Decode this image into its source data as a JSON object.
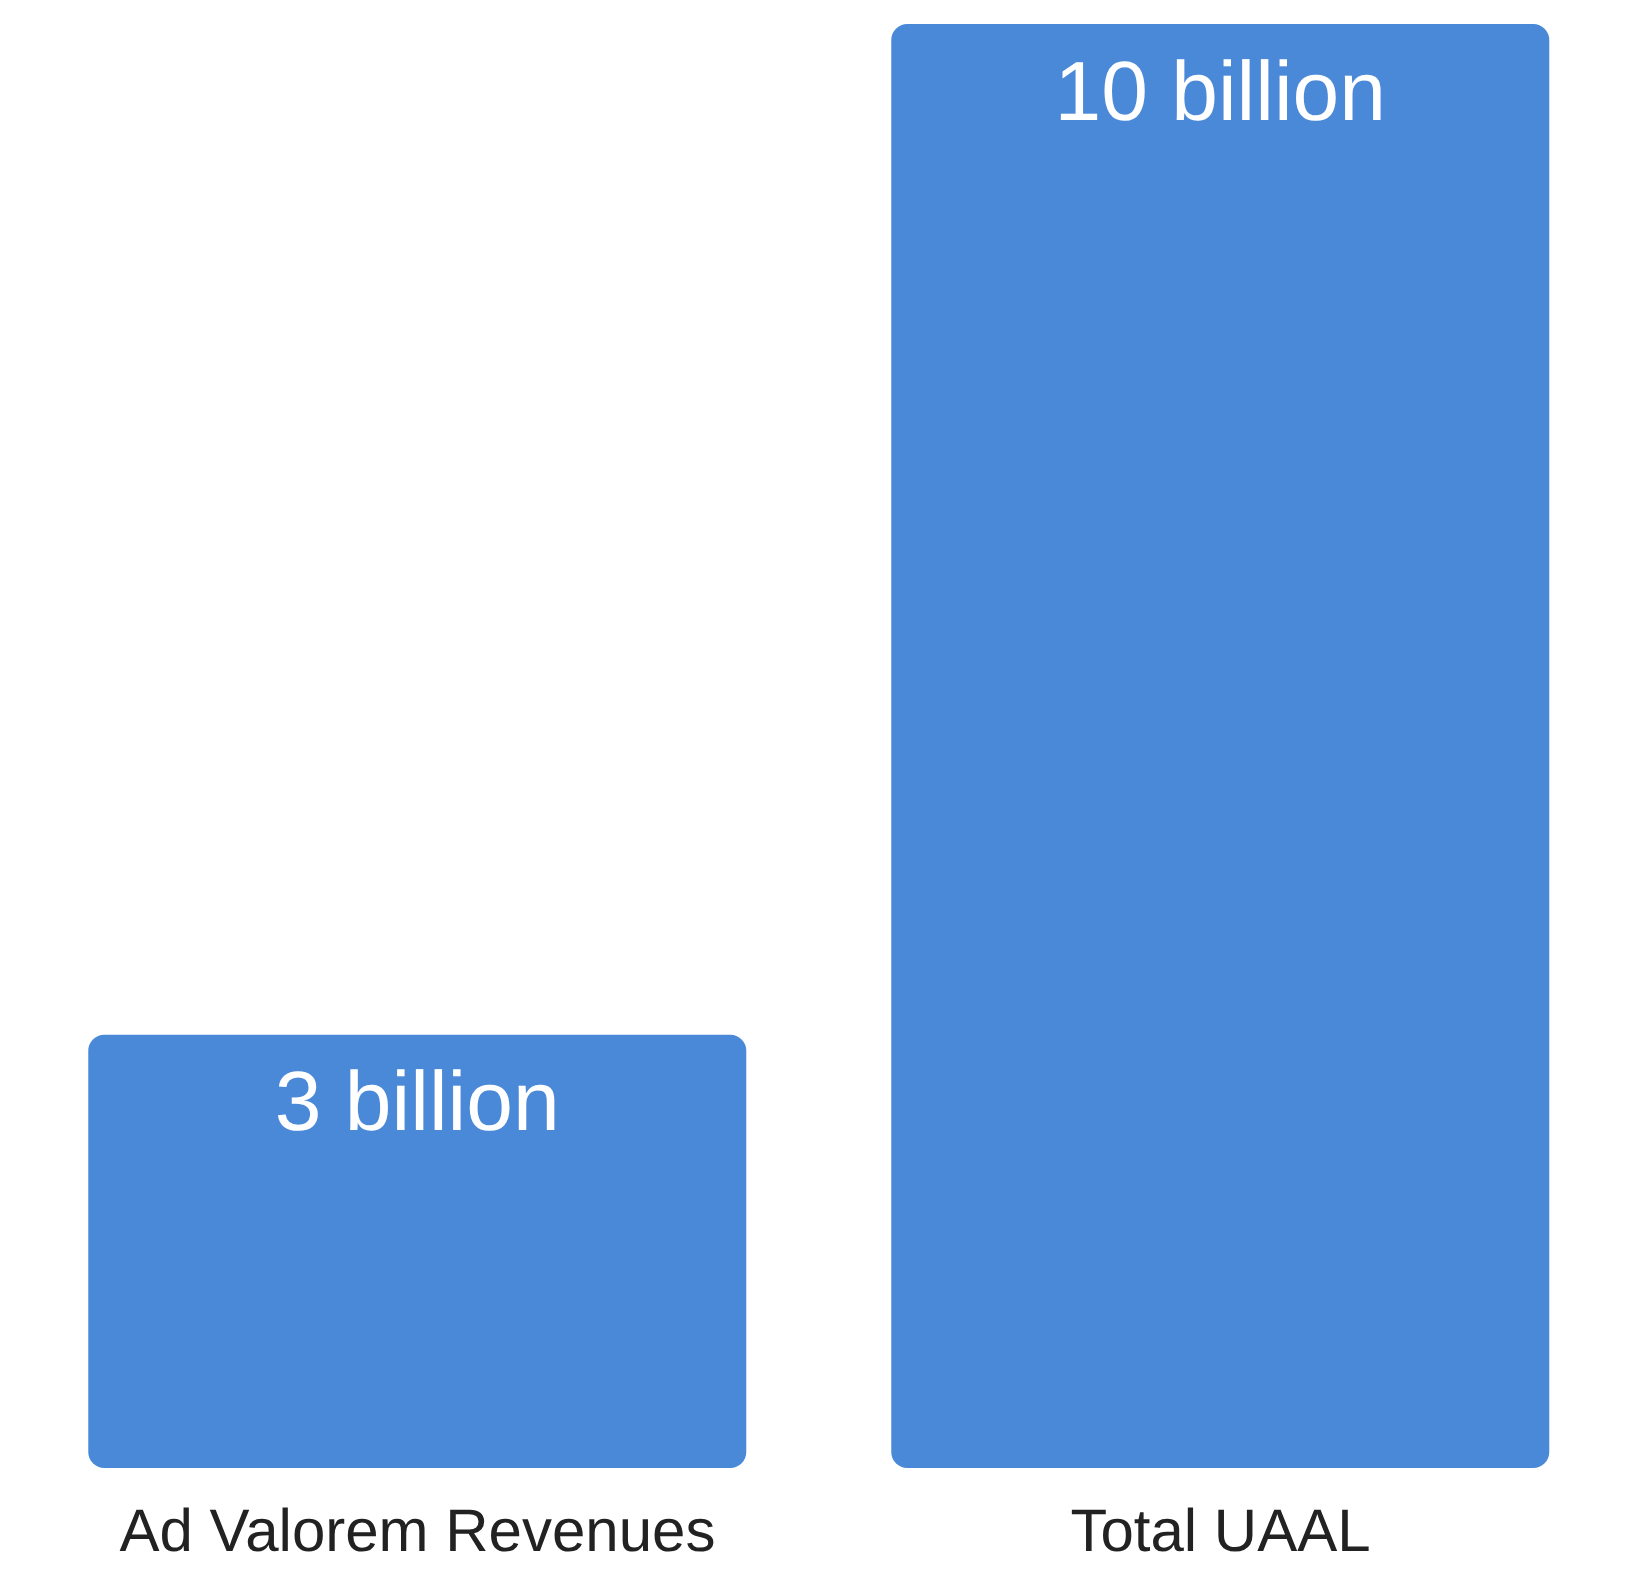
{
  "chart_data": {
    "type": "bar",
    "categories": [
      "Ad Valorem Revenues",
      "Total UAAL"
    ],
    "values": [
      3,
      10
    ],
    "value_labels": [
      "3 billion",
      "10 billion"
    ],
    "color": "#4a88d8"
  }
}
